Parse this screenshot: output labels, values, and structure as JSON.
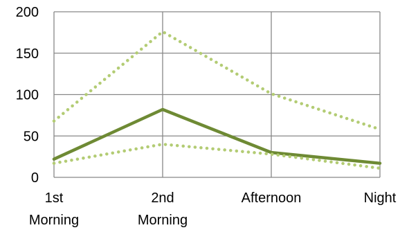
{
  "chart_data": {
    "type": "line",
    "x": [
      "1st Morning",
      "2nd Morning",
      "Afternoon",
      "Night"
    ],
    "x_tick_lines": [
      [
        "1st",
        "Morning"
      ],
      [
        "2nd",
        "Morning"
      ],
      [
        "Afternoon"
      ],
      [
        "Night"
      ]
    ],
    "ylim": [
      0,
      200
    ],
    "yticks": [
      0,
      50,
      100,
      150,
      200
    ],
    "grid": true,
    "legend": "none",
    "series": [
      {
        "values": [
          22,
          82,
          30,
          17
        ],
        "style": "solid",
        "color": "#6e8a34"
      },
      {
        "values": [
          68,
          176,
          101,
          58
        ],
        "style": "dotted",
        "color": "#b3cc74"
      },
      {
        "values": [
          17,
          40,
          28,
          11
        ],
        "style": "dotted",
        "color": "#b3cc74"
      }
    ]
  },
  "colors": {
    "grid": "#878787"
  }
}
